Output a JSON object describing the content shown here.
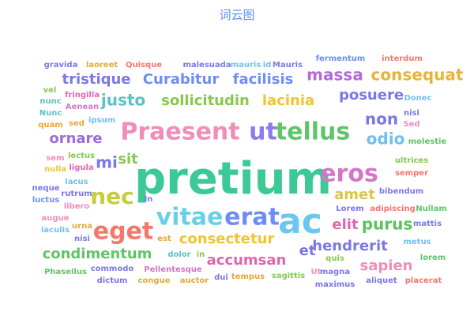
{
  "chart_data": {
    "type": "wordcloud",
    "title": "词云图",
    "palette": [
      "#37A2DA",
      "#32C5E9",
      "#67E0E3",
      "#9FE6B8",
      "#FFDB5C",
      "#ff9f7f",
      "#fb7293",
      "#E062AE",
      "#E690D1",
      "#e7bcf3",
      "#9d96f5",
      "#8378EA",
      "#96BFFF"
    ],
    "words": [
      {
        "text": "pretium",
        "color": "#3cc995"
      },
      {
        "text": "ac",
        "color": "#6cc7ef"
      },
      {
        "text": "Praesent",
        "color": "#f08db8"
      },
      {
        "text": "ut",
        "color": "#8a7cec"
      },
      {
        "text": "tellus",
        "color": "#5fc46a"
      },
      {
        "text": "eget",
        "color": "#f4776a"
      },
      {
        "text": "nec",
        "color": "#c6cc3c"
      },
      {
        "text": "vitae",
        "color": "#6ad0e8"
      },
      {
        "text": "erat",
        "color": "#6f8ef5"
      },
      {
        "text": "eros",
        "color": "#d376c9"
      },
      {
        "text": "tristique",
        "color": "#7a78e6"
      },
      {
        "text": "Curabitur",
        "color": "#6d8ef5"
      },
      {
        "text": "facilisis",
        "color": "#6d8ef5"
      },
      {
        "text": "massa",
        "color": "#b26bd6"
      },
      {
        "text": "consequat",
        "color": "#e6b43a"
      },
      {
        "text": "justo",
        "color": "#5cc2c2"
      },
      {
        "text": "sollicitudin",
        "color": "#86c850"
      },
      {
        "text": "lacinia",
        "color": "#f0c431"
      },
      {
        "text": "posuere",
        "color": "#7a78e6"
      },
      {
        "text": "non",
        "color": "#7a78e6"
      },
      {
        "text": "odio",
        "color": "#6fc0f0"
      },
      {
        "text": "ornare",
        "color": "#9b6ed8"
      },
      {
        "text": "mi",
        "color": "#7a78e6"
      },
      {
        "text": "sit",
        "color": "#86c850"
      },
      {
        "text": "amet",
        "color": "#d9c64a"
      },
      {
        "text": "elit",
        "color": "#e066ae"
      },
      {
        "text": "purus",
        "color": "#5cc25c"
      },
      {
        "text": "consectetur",
        "color": "#f0c431"
      },
      {
        "text": "hendrerit",
        "color": "#7a78e6"
      },
      {
        "text": "condimentum",
        "color": "#5fc46a"
      },
      {
        "text": "accumsan",
        "color": "#e066ae"
      },
      {
        "text": "et",
        "color": "#7a78e6"
      },
      {
        "text": "sapien",
        "color": "#f08db8"
      },
      {
        "text": "gravida",
        "color": "#7a78e6"
      },
      {
        "text": "laoreet",
        "color": "#e6a73a"
      },
      {
        "text": "Quisque",
        "color": "#f4776a"
      },
      {
        "text": "malesuada",
        "color": "#7a78e6"
      },
      {
        "text": "mauris",
        "color": "#6fc0f0"
      },
      {
        "text": "id",
        "color": "#6fc0f0"
      },
      {
        "text": "Mauris",
        "color": "#7a78e6"
      },
      {
        "text": "fermentum",
        "color": "#6d8ef5"
      },
      {
        "text": "interdum",
        "color": "#f4776a"
      },
      {
        "text": "vel",
        "color": "#86c850"
      },
      {
        "text": "fringilla",
        "color": "#e066ae"
      },
      {
        "text": "nunc",
        "color": "#5cc2c2"
      },
      {
        "text": "Aenean",
        "color": "#d376c9"
      },
      {
        "text": "Nunc",
        "color": "#5cc2c2"
      },
      {
        "text": "sed",
        "color": "#e6a73a"
      },
      {
        "text": "ipsum",
        "color": "#6fc0f0"
      },
      {
        "text": "quam",
        "color": "#f0a531"
      },
      {
        "text": "Donec",
        "color": "#6fc0f0"
      },
      {
        "text": "nisl",
        "color": "#7a78e6"
      },
      {
        "text": "Sed",
        "color": "#f08db8"
      },
      {
        "text": "molestie",
        "color": "#5fc46a"
      },
      {
        "text": "sem",
        "color": "#f08db8"
      },
      {
        "text": "lectus",
        "color": "#86c850"
      },
      {
        "text": "nulla",
        "color": "#f0c431"
      },
      {
        "text": "ligula",
        "color": "#e066ae"
      },
      {
        "text": "ultrices",
        "color": "#86c850"
      },
      {
        "text": "semper",
        "color": "#f4776a"
      },
      {
        "text": "neque",
        "color": "#7a78e6"
      },
      {
        "text": "lacus",
        "color": "#6fc0f0"
      },
      {
        "text": "luctus",
        "color": "#6d8ef5"
      },
      {
        "text": "rutrum",
        "color": "#7a78e6"
      },
      {
        "text": "libero",
        "color": "#f08db8"
      },
      {
        "text": "In",
        "color": "#7a78e6"
      },
      {
        "text": "bibendum",
        "color": "#7a78e6"
      },
      {
        "text": "Lorem",
        "color": "#7a78e6"
      },
      {
        "text": "adipiscing",
        "color": "#f4776a"
      },
      {
        "text": "Nullam",
        "color": "#5fc46a"
      },
      {
        "text": "augue",
        "color": "#f08db8"
      },
      {
        "text": "iaculis",
        "color": "#6fc0f0"
      },
      {
        "text": "urna",
        "color": "#e6a73a"
      },
      {
        "text": "mattis",
        "color": "#7a78e6"
      },
      {
        "text": "nisi",
        "color": "#7a78e6"
      },
      {
        "text": "est",
        "color": "#e6a73a"
      },
      {
        "text": "metus",
        "color": "#6fc0f0"
      },
      {
        "text": "dolor",
        "color": "#5cc2c2"
      },
      {
        "text": "in",
        "color": "#86c850"
      },
      {
        "text": "quis",
        "color": "#86c850"
      },
      {
        "text": "lorem",
        "color": "#5fc46a"
      },
      {
        "text": "Phasellus",
        "color": "#5fc46a"
      },
      {
        "text": "commodo",
        "color": "#7a78e6"
      },
      {
        "text": "Pellentesque",
        "color": "#d376c9"
      },
      {
        "text": "Ut",
        "color": "#f08db8"
      },
      {
        "text": "magna",
        "color": "#7a78e6"
      },
      {
        "text": "dictum",
        "color": "#7a78e6"
      },
      {
        "text": "congue",
        "color": "#e6a73a"
      },
      {
        "text": "auctor",
        "color": "#e6a73a"
      },
      {
        "text": "dui",
        "color": "#7a78e6"
      },
      {
        "text": "tempus",
        "color": "#e6a73a"
      },
      {
        "text": "sagittis",
        "color": "#86c850"
      },
      {
        "text": "maximus",
        "color": "#7a78e6"
      },
      {
        "text": "aliquet",
        "color": "#7a78e6"
      },
      {
        "text": "placerat",
        "color": "#f4776a"
      }
    ]
  }
}
